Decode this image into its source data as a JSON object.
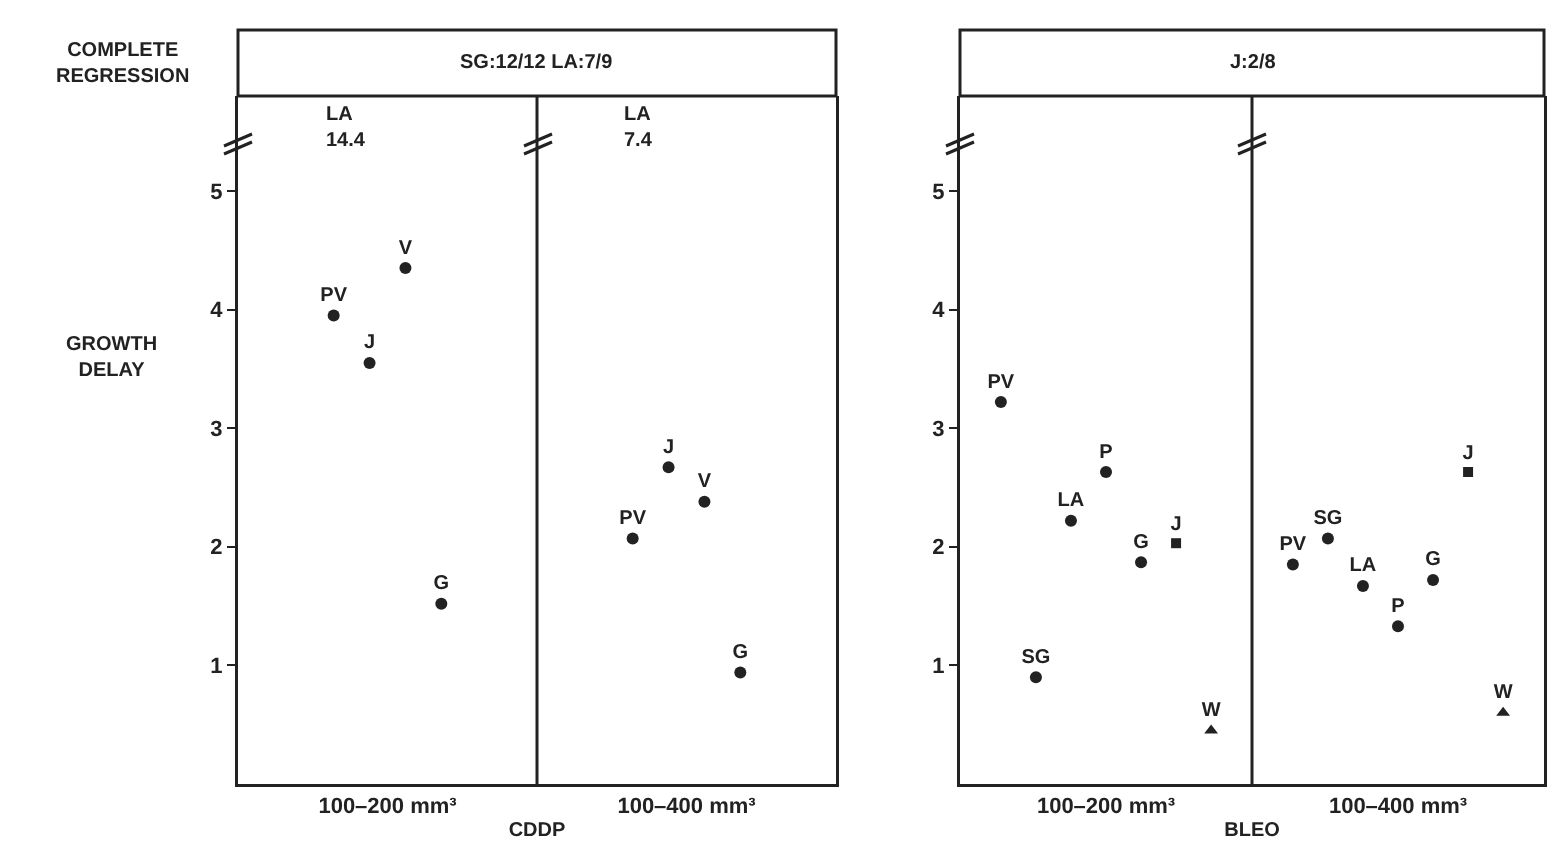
{
  "chart_data": [
    {
      "type": "scatter",
      "title": "SG:12/12 LA:7/9",
      "xlabel": "CDDP",
      "ylabel": "GROWTH DELAY",
      "annotations": [
        "COMPLETE REGRESSION",
        "LA 14.4",
        "LA 7.4"
      ],
      "categories": [
        "100–200 mm³",
        "100–400 mm³"
      ],
      "ylim": [
        0,
        5.8
      ],
      "yticks": [
        1,
        2,
        3,
        4,
        5
      ],
      "grid": "x",
      "series": [
        {
          "name": "PV",
          "marker": "circle",
          "color": "#222222",
          "values": [
            3.95,
            2.07
          ]
        },
        {
          "name": "J",
          "marker": "circle",
          "color": "#222222",
          "values": [
            3.55,
            2.67
          ]
        },
        {
          "name": "V",
          "marker": "circle",
          "color": "#222222",
          "values": [
            4.35,
            2.38
          ]
        },
        {
          "name": "G",
          "marker": "circle",
          "color": "#222222",
          "values": [
            1.52,
            0.94
          ]
        }
      ]
    },
    {
      "type": "scatter",
      "title": "J:2/8",
      "xlabel": "BLEO",
      "categories": [
        "100–200 mm³",
        "100–400 mm³"
      ],
      "ylim": [
        0,
        5.8
      ],
      "yticks": [
        1,
        2,
        3,
        4,
        5
      ],
      "grid": "x",
      "series": [
        {
          "name": "PV",
          "marker": "circle",
          "color": "#222222",
          "values": [
            3.22,
            1.85
          ]
        },
        {
          "name": "SG",
          "marker": "circle",
          "color": "#222222",
          "values": [
            0.9,
            2.07
          ]
        },
        {
          "name": "LA",
          "marker": "circle",
          "color": "#222222",
          "values": [
            2.22,
            1.67
          ]
        },
        {
          "name": "P",
          "marker": "circle",
          "color": "#222222",
          "values": [
            2.63,
            1.33
          ]
        },
        {
          "name": "G",
          "marker": "circle",
          "color": "#222222",
          "values": [
            1.87,
            1.72
          ]
        },
        {
          "name": "J",
          "marker": "square",
          "color": "#222222",
          "values": [
            2.03,
            2.63
          ]
        },
        {
          "name": "W",
          "marker": "triangle",
          "color": "#222222",
          "values": [
            0.45,
            0.6
          ]
        }
      ]
    }
  ]
}
